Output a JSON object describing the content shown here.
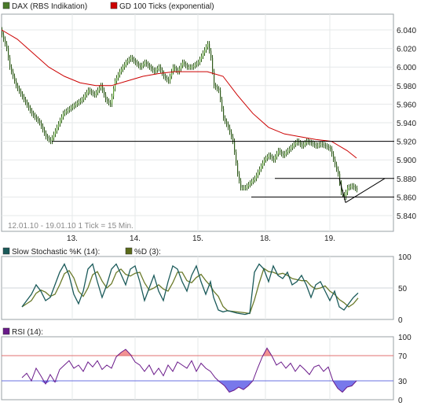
{
  "chart_data": [
    {
      "type": "candlestick",
      "legend": [
        {
          "label": "DAX (RBS Indikation)",
          "color": "#4a7a2a"
        },
        {
          "label": "GD 100 Ticks (exponential)",
          "color": "#cc0000"
        }
      ],
      "note": "12.01.10 - 19.01.10   1 Tick = 15 Min.",
      "x_tick_labels": [
        "13.",
        "14.",
        "15.",
        "18.",
        "19."
      ],
      "y_tick_labels": [
        "6.040",
        "6.020",
        "6.000",
        "5.980",
        "5.960",
        "5.940",
        "5.920",
        "5.900",
        "5.880",
        "5.860",
        "5.840"
      ],
      "ylim": [
        5.84,
        6.04
      ],
      "price_series": [
        [
          0,
          6.04
        ],
        [
          8,
          6.02
        ],
        [
          12,
          6.0
        ],
        [
          20,
          5.98
        ],
        [
          30,
          5.965
        ],
        [
          40,
          5.95
        ],
        [
          50,
          5.94
        ],
        [
          58,
          5.925
        ],
        [
          64,
          5.92
        ],
        [
          72,
          5.935
        ],
        [
          80,
          5.95
        ],
        [
          88,
          5.955
        ],
        [
          96,
          5.96
        ],
        [
          104,
          5.965
        ],
        [
          112,
          5.975
        ],
        [
          120,
          5.97
        ],
        [
          128,
          5.98
        ],
        [
          134,
          5.965
        ],
        [
          140,
          5.96
        ],
        [
          146,
          5.985
        ],
        [
          152,
          5.995
        ],
        [
          160,
          6.005
        ],
        [
          166,
          6.01
        ],
        [
          172,
          6.005
        ],
        [
          178,
          6.0
        ],
        [
          184,
          6.005
        ],
        [
          190,
          6.0
        ],
        [
          196,
          5.995
        ],
        [
          202,
          6.0
        ],
        [
          208,
          5.99
        ],
        [
          214,
          5.985
        ],
        [
          220,
          6.0
        ],
        [
          226,
          5.995
        ],
        [
          232,
          6.005
        ],
        [
          238,
          6.0
        ],
        [
          244,
          6.0
        ],
        [
          252,
          6.005
        ],
        [
          258,
          6.015
        ],
        [
          264,
          6.025
        ],
        [
          268,
          6.01
        ],
        [
          272,
          5.98
        ],
        [
          278,
          5.975
        ],
        [
          284,
          5.945
        ],
        [
          290,
          5.935
        ],
        [
          296,
          5.92
        ],
        [
          302,
          5.885
        ],
        [
          306,
          5.87
        ],
        [
          312,
          5.87
        ],
        [
          318,
          5.875
        ],
        [
          324,
          5.88
        ],
        [
          330,
          5.89
        ],
        [
          336,
          5.9
        ],
        [
          342,
          5.905
        ],
        [
          348,
          5.9
        ],
        [
          354,
          5.91
        ],
        [
          360,
          5.905
        ],
        [
          366,
          5.91
        ],
        [
          372,
          5.915
        ],
        [
          378,
          5.92
        ],
        [
          384,
          5.915
        ],
        [
          390,
          5.92
        ],
        [
          396,
          5.918
        ],
        [
          402,
          5.915
        ],
        [
          408,
          5.917
        ],
        [
          414,
          5.915
        ],
        [
          420,
          5.912
        ],
        [
          426,
          5.895
        ],
        [
          430,
          5.885
        ],
        [
          434,
          5.865
        ],
        [
          438,
          5.86
        ],
        [
          442,
          5.87
        ],
        [
          448,
          5.872
        ],
        [
          454,
          5.868
        ]
      ],
      "ma_series": [
        [
          0,
          6.04
        ],
        [
          20,
          6.03
        ],
        [
          40,
          6.015
        ],
        [
          60,
          6.0
        ],
        [
          80,
          5.99
        ],
        [
          100,
          5.983
        ],
        [
          120,
          5.98
        ],
        [
          140,
          5.98
        ],
        [
          160,
          5.985
        ],
        [
          180,
          5.99
        ],
        [
          200,
          5.993
        ],
        [
          220,
          5.995
        ],
        [
          240,
          5.995
        ],
        [
          262,
          5.995
        ],
        [
          282,
          5.99
        ],
        [
          300,
          5.97
        ],
        [
          320,
          5.95
        ],
        [
          340,
          5.935
        ],
        [
          360,
          5.928
        ],
        [
          380,
          5.925
        ],
        [
          400,
          5.922
        ],
        [
          420,
          5.92
        ],
        [
          440,
          5.91
        ],
        [
          452,
          5.902
        ]
      ],
      "trend_lines": [
        {
          "from": [
            64,
            5.92
          ],
          "to": [
            500,
            5.92
          ]
        },
        {
          "from": [
            348,
            5.88
          ],
          "to": [
            500,
            5.88
          ]
        },
        {
          "from": [
            318,
            5.86
          ],
          "to": [
            500,
            5.86
          ]
        },
        {
          "from": [
            438,
            5.854
          ],
          "to": [
            488,
            5.88
          ]
        },
        {
          "from": [
            438,
            5.854
          ],
          "to": [
            430,
            5.88
          ]
        }
      ]
    },
    {
      "type": "line",
      "legend": [
        {
          "label": "Slow Stochastic %K (14):",
          "color": "#1a5a5a"
        },
        {
          "label": "%D (3):",
          "color": "#5a6a1a"
        }
      ],
      "y_tick_labels": [
        "100",
        "50",
        "0"
      ],
      "ylim": [
        0,
        100
      ],
      "k_series": [
        [
          26,
          20
        ],
        [
          32,
          30
        ],
        [
          38,
          40
        ],
        [
          44,
          55
        ],
        [
          50,
          45
        ],
        [
          56,
          30
        ],
        [
          62,
          35
        ],
        [
          68,
          55
        ],
        [
          74,
          75
        ],
        [
          80,
          88
        ],
        [
          86,
          70
        ],
        [
          92,
          40
        ],
        [
          98,
          25
        ],
        [
          104,
          45
        ],
        [
          110,
          80
        ],
        [
          116,
          88
        ],
        [
          122,
          60
        ],
        [
          128,
          35
        ],
        [
          134,
          55
        ],
        [
          140,
          80
        ],
        [
          146,
          88
        ],
        [
          152,
          72
        ],
        [
          158,
          55
        ],
        [
          164,
          80
        ],
        [
          170,
          85
        ],
        [
          176,
          60
        ],
        [
          182,
          30
        ],
        [
          188,
          50
        ],
        [
          194,
          70
        ],
        [
          200,
          45
        ],
        [
          206,
          30
        ],
        [
          212,
          60
        ],
        [
          218,
          85
        ],
        [
          224,
          80
        ],
        [
          230,
          60
        ],
        [
          236,
          45
        ],
        [
          242,
          70
        ],
        [
          248,
          85
        ],
        [
          254,
          60
        ],
        [
          260,
          40
        ],
        [
          266,
          60
        ],
        [
          270,
          35
        ],
        [
          276,
          15
        ],
        [
          282,
          12
        ],
        [
          288,
          14
        ],
        [
          300,
          10
        ],
        [
          310,
          8
        ],
        [
          316,
          10
        ],
        [
          322,
          75
        ],
        [
          328,
          88
        ],
        [
          334,
          80
        ],
        [
          340,
          60
        ],
        [
          346,
          85
        ],
        [
          352,
          70
        ],
        [
          358,
          65
        ],
        [
          364,
          75
        ],
        [
          370,
          55
        ],
        [
          376,
          60
        ],
        [
          382,
          70
        ],
        [
          388,
          55
        ],
        [
          394,
          35
        ],
        [
          400,
          55
        ],
        [
          406,
          60
        ],
        [
          412,
          45
        ],
        [
          418,
          30
        ],
        [
          424,
          45
        ],
        [
          430,
          20
        ],
        [
          436,
          15
        ],
        [
          442,
          25
        ],
        [
          448,
          35
        ],
        [
          454,
          42
        ]
      ]
    },
    {
      "type": "line",
      "legend": [
        {
          "label": "RSI (14):",
          "color": "#6a1a8a"
        }
      ],
      "y_tick_labels": [
        "100",
        "70",
        "30",
        "0"
      ],
      "ylim": [
        0,
        100
      ],
      "reference_lines": [
        70,
        30
      ],
      "rsi_series": [
        [
          26,
          35
        ],
        [
          32,
          42
        ],
        [
          38,
          30
        ],
        [
          44,
          50
        ],
        [
          50,
          38
        ],
        [
          56,
          25
        ],
        [
          62,
          40
        ],
        [
          68,
          28
        ],
        [
          74,
          48
        ],
        [
          80,
          55
        ],
        [
          86,
          62
        ],
        [
          92,
          50
        ],
        [
          98,
          55
        ],
        [
          104,
          45
        ],
        [
          110,
          60
        ],
        [
          116,
          52
        ],
        [
          122,
          62
        ],
        [
          128,
          48
        ],
        [
          134,
          55
        ],
        [
          140,
          50
        ],
        [
          146,
          68
        ],
        [
          152,
          75
        ],
        [
          158,
          80
        ],
        [
          164,
          72
        ],
        [
          170,
          60
        ],
        [
          176,
          55
        ],
        [
          182,
          45
        ],
        [
          188,
          55
        ],
        [
          194,
          40
        ],
        [
          200,
          50
        ],
        [
          206,
          38
        ],
        [
          212,
          55
        ],
        [
          218,
          45
        ],
        [
          224,
          60
        ],
        [
          230,
          55
        ],
        [
          236,
          50
        ],
        [
          242,
          62
        ],
        [
          248,
          45
        ],
        [
          254,
          58
        ],
        [
          260,
          50
        ],
        [
          266,
          45
        ],
        [
          272,
          35
        ],
        [
          278,
          28
        ],
        [
          284,
          22
        ],
        [
          290,
          12
        ],
        [
          296,
          15
        ],
        [
          302,
          20
        ],
        [
          308,
          16
        ],
        [
          314,
          22
        ],
        [
          320,
          30
        ],
        [
          326,
          50
        ],
        [
          332,
          68
        ],
        [
          338,
          82
        ],
        [
          344,
          70
        ],
        [
          350,
          55
        ],
        [
          356,
          60
        ],
        [
          362,
          50
        ],
        [
          368,
          58
        ],
        [
          374,
          45
        ],
        [
          380,
          55
        ],
        [
          386,
          48
        ],
        [
          392,
          40
        ],
        [
          398,
          52
        ],
        [
          404,
          55
        ],
        [
          410,
          45
        ],
        [
          416,
          52
        ],
        [
          422,
          30
        ],
        [
          428,
          18
        ],
        [
          434,
          12
        ],
        [
          440,
          20
        ],
        [
          446,
          22
        ],
        [
          452,
          30
        ]
      ]
    }
  ]
}
